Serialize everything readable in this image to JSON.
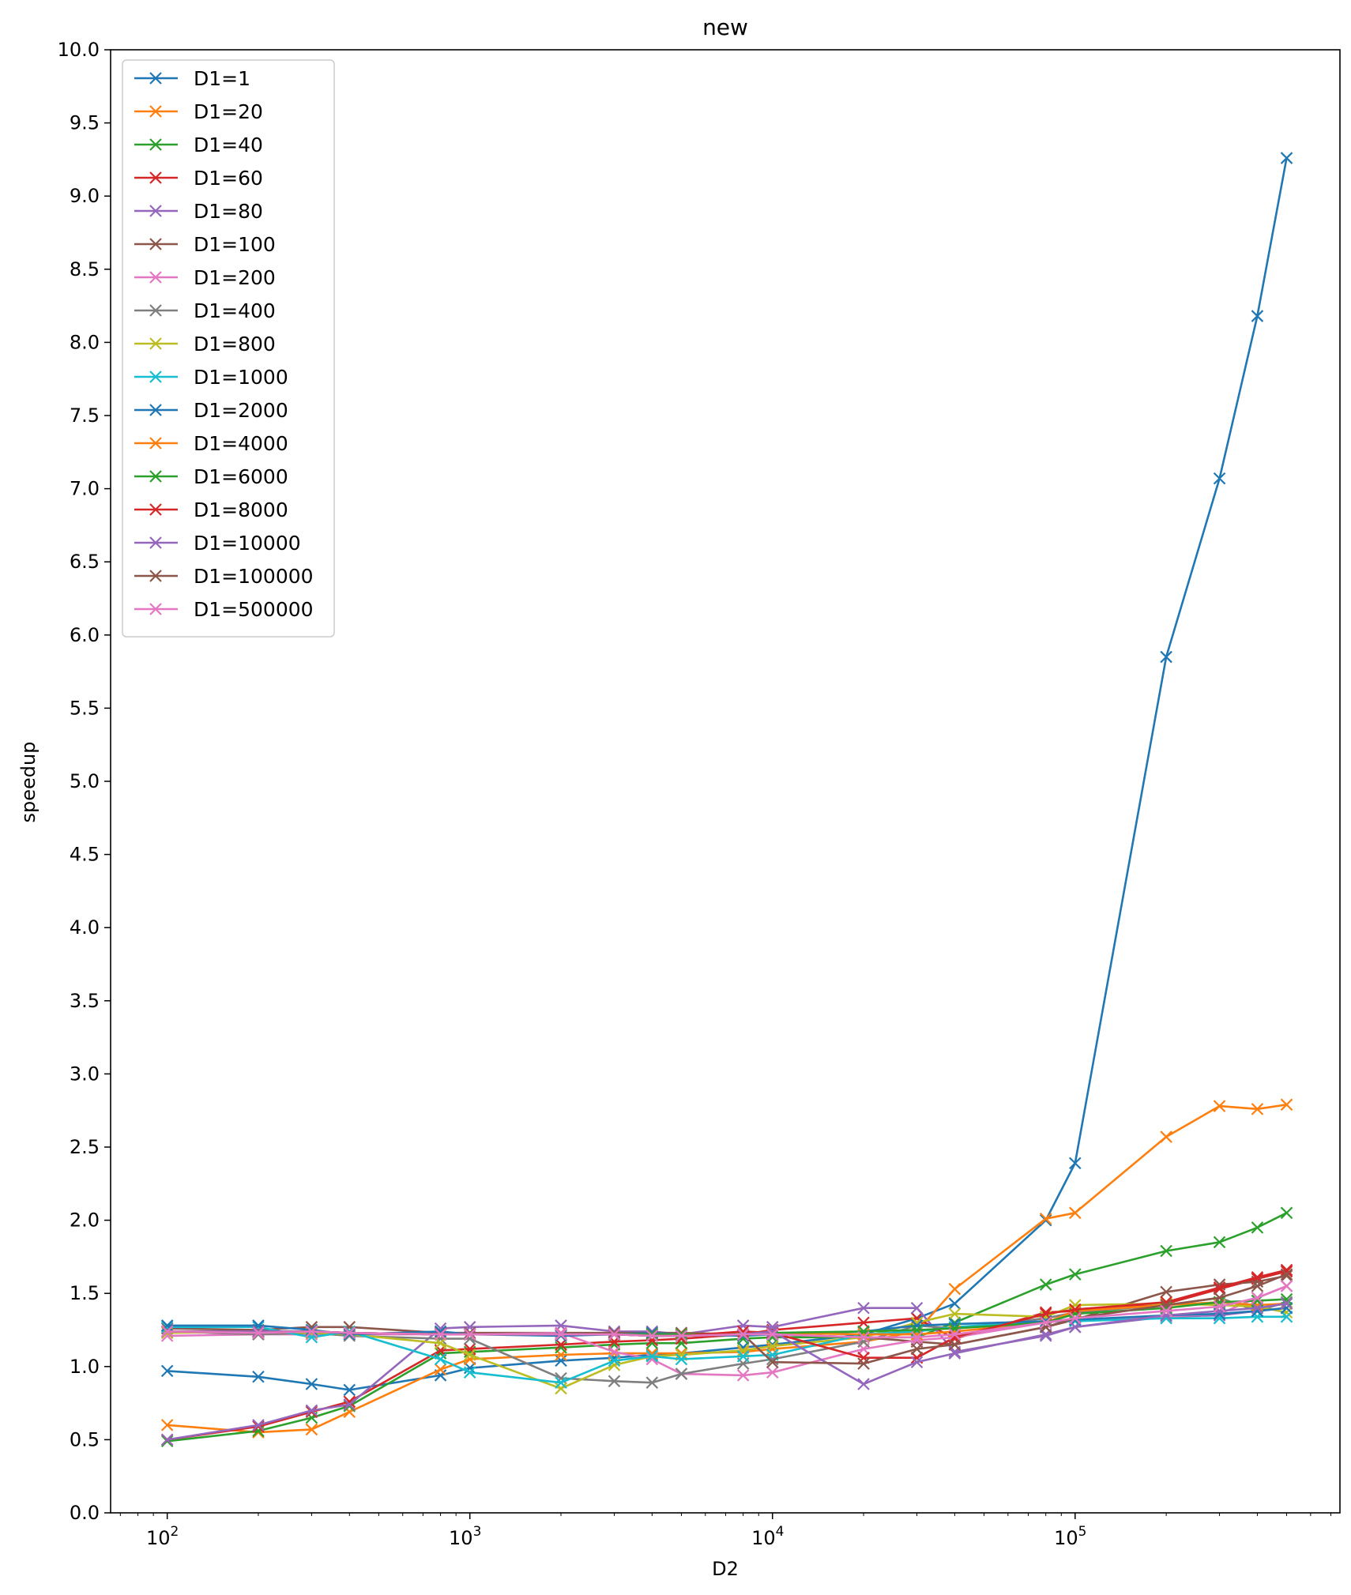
{
  "chart_data": {
    "type": "line",
    "title": "new",
    "xlabel": "D2",
    "ylabel": "speedup",
    "xscale": "log",
    "xlim": [
      65,
      750000
    ],
    "ylim": [
      0,
      10
    ],
    "x_ticks": [
      {
        "value": 100,
        "label": "10",
        "exp": "2"
      },
      {
        "value": 1000,
        "label": "10",
        "exp": "3"
      },
      {
        "value": 10000,
        "label": "10",
        "exp": "4"
      },
      {
        "value": 100000,
        "label": "10",
        "exp": "5"
      }
    ],
    "y_ticks": [
      "0.0",
      "0.5",
      "1.0",
      "1.5",
      "2.0",
      "2.5",
      "3.0",
      "3.5",
      "4.0",
      "4.5",
      "5.0",
      "5.5",
      "6.0",
      "6.5",
      "7.0",
      "7.5",
      "8.0",
      "8.5",
      "9.0",
      "9.5",
      "10.0"
    ],
    "legend_position": "top-left",
    "marker": "x",
    "x": [
      100,
      200,
      300,
      400,
      800,
      1000,
      2000,
      3000,
      4000,
      5000,
      8000,
      10000,
      20000,
      30000,
      40000,
      80000,
      100000,
      200000,
      300000,
      400000,
      500000
    ],
    "series": [
      {
        "name": "D1=1",
        "color": "#1f77b4",
        "values": [
          0.97,
          0.93,
          0.88,
          0.84,
          0.94,
          0.99,
          1.04,
          1.06,
          1.08,
          1.09,
          1.13,
          1.15,
          1.22,
          1.33,
          1.43,
          2.0,
          2.39,
          5.85,
          7.07,
          8.18,
          9.26
        ]
      },
      {
        "name": "D1=20",
        "color": "#ff7f0e",
        "values": [
          0.6,
          0.55,
          0.57,
          0.69,
          0.98,
          1.05,
          1.08,
          1.09,
          1.09,
          1.09,
          1.1,
          1.12,
          1.17,
          1.24,
          1.53,
          2.01,
          2.05,
          2.57,
          2.78,
          2.76,
          2.79
        ]
      },
      {
        "name": "D1=40",
        "color": "#2ca02c",
        "values": [
          0.49,
          0.56,
          0.65,
          0.73,
          1.09,
          1.1,
          1.13,
          1.15,
          1.16,
          1.16,
          1.19,
          1.2,
          1.2,
          1.2,
          1.3,
          1.56,
          1.63,
          1.79,
          1.85,
          1.95,
          2.05
        ]
      },
      {
        "name": "D1=60",
        "color": "#d62728",
        "values": [
          0.5,
          0.59,
          0.69,
          0.76,
          1.11,
          1.12,
          1.15,
          1.17,
          1.18,
          1.19,
          1.22,
          1.25,
          1.3,
          1.33,
          1.19,
          1.37,
          1.38,
          1.43,
          1.53,
          1.6,
          1.65
        ]
      },
      {
        "name": "D1=80",
        "color": "#9467bd",
        "values": [
          0.5,
          0.6,
          0.7,
          0.74,
          1.26,
          1.27,
          1.28,
          1.24,
          1.24,
          1.22,
          1.28,
          1.27,
          1.4,
          1.4,
          1.1,
          1.21,
          1.27,
          1.34,
          1.35,
          1.38,
          1.4
        ]
      },
      {
        "name": "D1=100",
        "color": "#8c564b",
        "values": [
          1.26,
          1.25,
          1.27,
          1.27,
          1.23,
          1.23,
          1.23,
          1.23,
          1.23,
          1.23,
          1.22,
          1.22,
          1.2,
          1.17,
          1.15,
          1.27,
          1.32,
          1.51,
          1.56,
          1.58,
          1.62
        ]
      },
      {
        "name": "D1=200",
        "color": "#e377c2",
        "values": [
          1.21,
          1.22,
          1.22,
          1.22,
          1.22,
          1.22,
          1.23,
          1.1,
          1.05,
          0.95,
          0.94,
          0.96,
          1.12,
          1.18,
          1.2,
          1.3,
          1.32,
          1.34,
          1.36,
          1.47,
          1.55
        ]
      },
      {
        "name": "D1=400",
        "color": "#7f7f7f",
        "values": [
          1.24,
          1.22,
          1.23,
          1.21,
          1.19,
          1.19,
          0.92,
          0.9,
          0.89,
          0.95,
          1.02,
          1.05,
          1.17,
          1.28,
          1.26,
          1.33,
          1.37,
          1.42,
          1.47,
          1.38,
          1.44
        ]
      },
      {
        "name": "D1=800",
        "color": "#bcbd22",
        "values": [
          1.23,
          1.24,
          1.23,
          1.22,
          1.16,
          1.08,
          0.85,
          1.01,
          1.07,
          1.08,
          1.11,
          1.14,
          1.2,
          1.3,
          1.36,
          1.34,
          1.42,
          1.43,
          1.42,
          1.41,
          1.37
        ]
      },
      {
        "name": "D1=1000",
        "color": "#17becf",
        "values": [
          1.27,
          1.27,
          1.2,
          1.24,
          1.05,
          0.96,
          0.89,
          1.04,
          1.07,
          1.05,
          1.07,
          1.08,
          1.22,
          1.24,
          1.27,
          1.31,
          1.31,
          1.33,
          1.33,
          1.34,
          1.34
        ]
      },
      {
        "name": "D1=2000",
        "color": "#1f77b4",
        "values": [
          1.28,
          1.28,
          1.25,
          1.22,
          1.24,
          1.22,
          1.21,
          1.22,
          1.23,
          1.22,
          1.21,
          1.22,
          1.24,
          1.28,
          1.29,
          1.31,
          1.32,
          1.35,
          1.36,
          1.38,
          1.4
        ]
      },
      {
        "name": "D1=4000",
        "color": "#ff7f0e",
        "values": [
          1.24,
          1.23,
          1.24,
          1.23,
          1.22,
          1.22,
          1.22,
          1.22,
          1.22,
          1.22,
          1.22,
          1.23,
          1.22,
          1.22,
          1.24,
          1.3,
          1.38,
          1.42,
          1.44,
          1.42,
          1.43
        ]
      },
      {
        "name": "D1=6000",
        "color": "#2ca02c",
        "values": [
          1.24,
          1.24,
          1.24,
          1.23,
          1.22,
          1.22,
          1.22,
          1.22,
          1.22,
          1.22,
          1.22,
          1.23,
          1.24,
          1.25,
          1.26,
          1.3,
          1.36,
          1.4,
          1.44,
          1.45,
          1.46
        ]
      },
      {
        "name": "D1=8000",
        "color": "#d62728",
        "values": [
          1.24,
          1.24,
          1.24,
          1.23,
          1.22,
          1.22,
          1.22,
          1.22,
          1.21,
          1.21,
          1.24,
          1.23,
          1.06,
          1.06,
          1.2,
          1.36,
          1.39,
          1.44,
          1.54,
          1.61,
          1.66
        ]
      },
      {
        "name": "D1=10000",
        "color": "#9467bd",
        "values": [
          1.24,
          1.24,
          1.24,
          1.23,
          1.22,
          1.22,
          1.22,
          1.22,
          1.21,
          1.21,
          1.22,
          1.24,
          0.88,
          1.03,
          1.09,
          1.22,
          1.27,
          1.35,
          1.38,
          1.4,
          1.43
        ]
      },
      {
        "name": "D1=100000",
        "color": "#8c564b",
        "values": [
          1.24,
          1.23,
          1.24,
          1.23,
          1.22,
          1.22,
          1.22,
          1.22,
          1.21,
          1.21,
          1.22,
          1.03,
          1.02,
          1.12,
          1.15,
          1.27,
          1.33,
          1.42,
          1.47,
          1.55,
          1.63
        ]
      },
      {
        "name": "D1=500000",
        "color": "#e377c2",
        "values": [
          1.24,
          1.23,
          1.24,
          1.23,
          1.22,
          1.22,
          1.22,
          1.22,
          1.21,
          1.21,
          1.22,
          1.22,
          1.2,
          1.2,
          1.22,
          1.3,
          1.33,
          1.38,
          1.41,
          1.47,
          1.55
        ]
      }
    ]
  }
}
